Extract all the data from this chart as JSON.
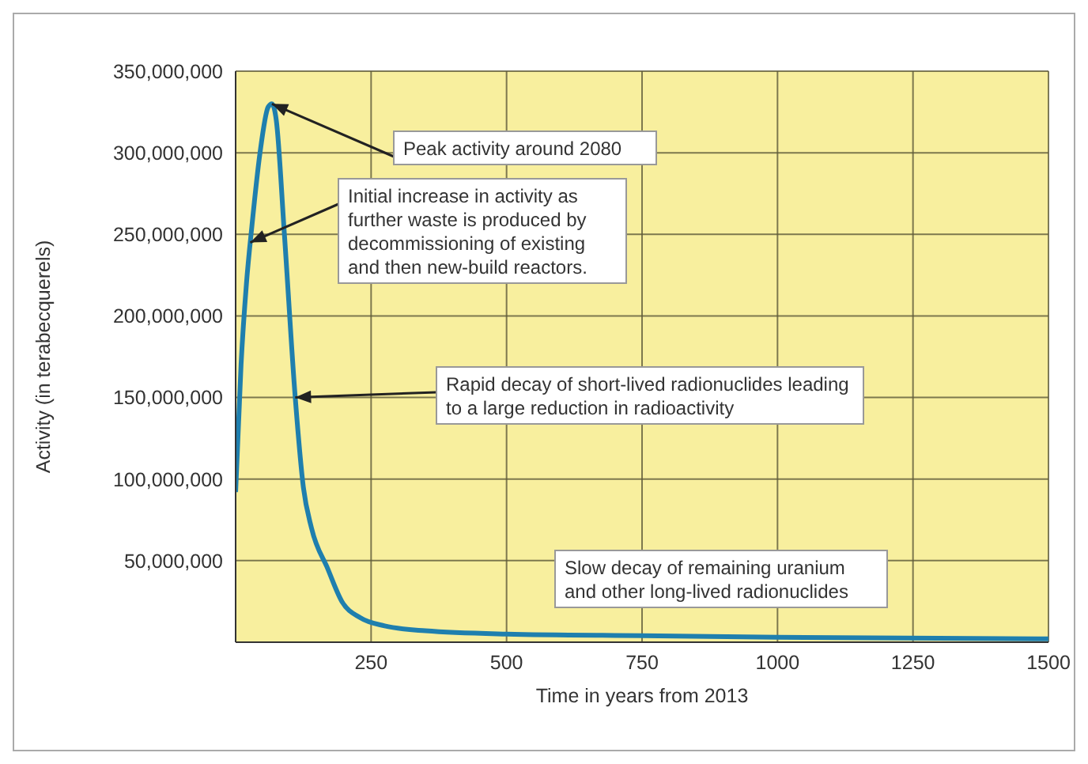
{
  "chart_data": {
    "type": "line",
    "xlabel": "Time in years from 2013",
    "ylabel": "Activity (in terabecquerels)",
    "x": [
      0,
      10,
      20,
      30,
      45,
      60,
      67,
      75,
      90,
      110,
      125,
      140,
      170,
      196,
      230,
      275,
      350,
      500,
      750,
      1000,
      1500
    ],
    "series": [
      {
        "color": "#1f7fae",
        "values": [
          92000000,
          170000000,
          220000000,
          255000000,
          300000000,
          328000000,
          330000000,
          320000000,
          250000000,
          150000000,
          95000000,
          70000000,
          45000000,
          25000000,
          15000000,
          10000000,
          7000000,
          5000000,
          4000000,
          3000000,
          2000000
        ]
      }
    ],
    "xlim": [
      0,
      1500
    ],
    "xticks": [
      250,
      500,
      750,
      1000,
      1250,
      1500
    ],
    "ylim": [
      0,
      350000000
    ],
    "yticks": [
      {
        "value": 50000000,
        "label": "50,000,000"
      },
      {
        "value": 100000000,
        "label": "100,000,000"
      },
      {
        "value": 150000000,
        "label": "150,000,000"
      },
      {
        "value": 200000000,
        "label": "200,000,000"
      },
      {
        "value": 250000000,
        "label": "250,000,000"
      },
      {
        "value": 300000000,
        "label": "300,000,000"
      },
      {
        "value": 350000000,
        "label": "350,000,000"
      }
    ],
    "grid": true,
    "marker": "none",
    "line_style": "solid",
    "annotations": [
      {
        "text": "Peak activity around 2080",
        "x": 67,
        "y": 330000000
      },
      {
        "text": "Initial increase in activity as further waste is produced by decommissioning of existing and then new-build reactors.",
        "x": 27,
        "y": 245000000
      },
      {
        "text": "Rapid decay of short-lived radionuclides leading to a large reduction in radioactivity",
        "x": 110,
        "y": 150000000
      },
      "Slow decay of remaining uranium and other long-lived radionuclides"
    ]
  }
}
